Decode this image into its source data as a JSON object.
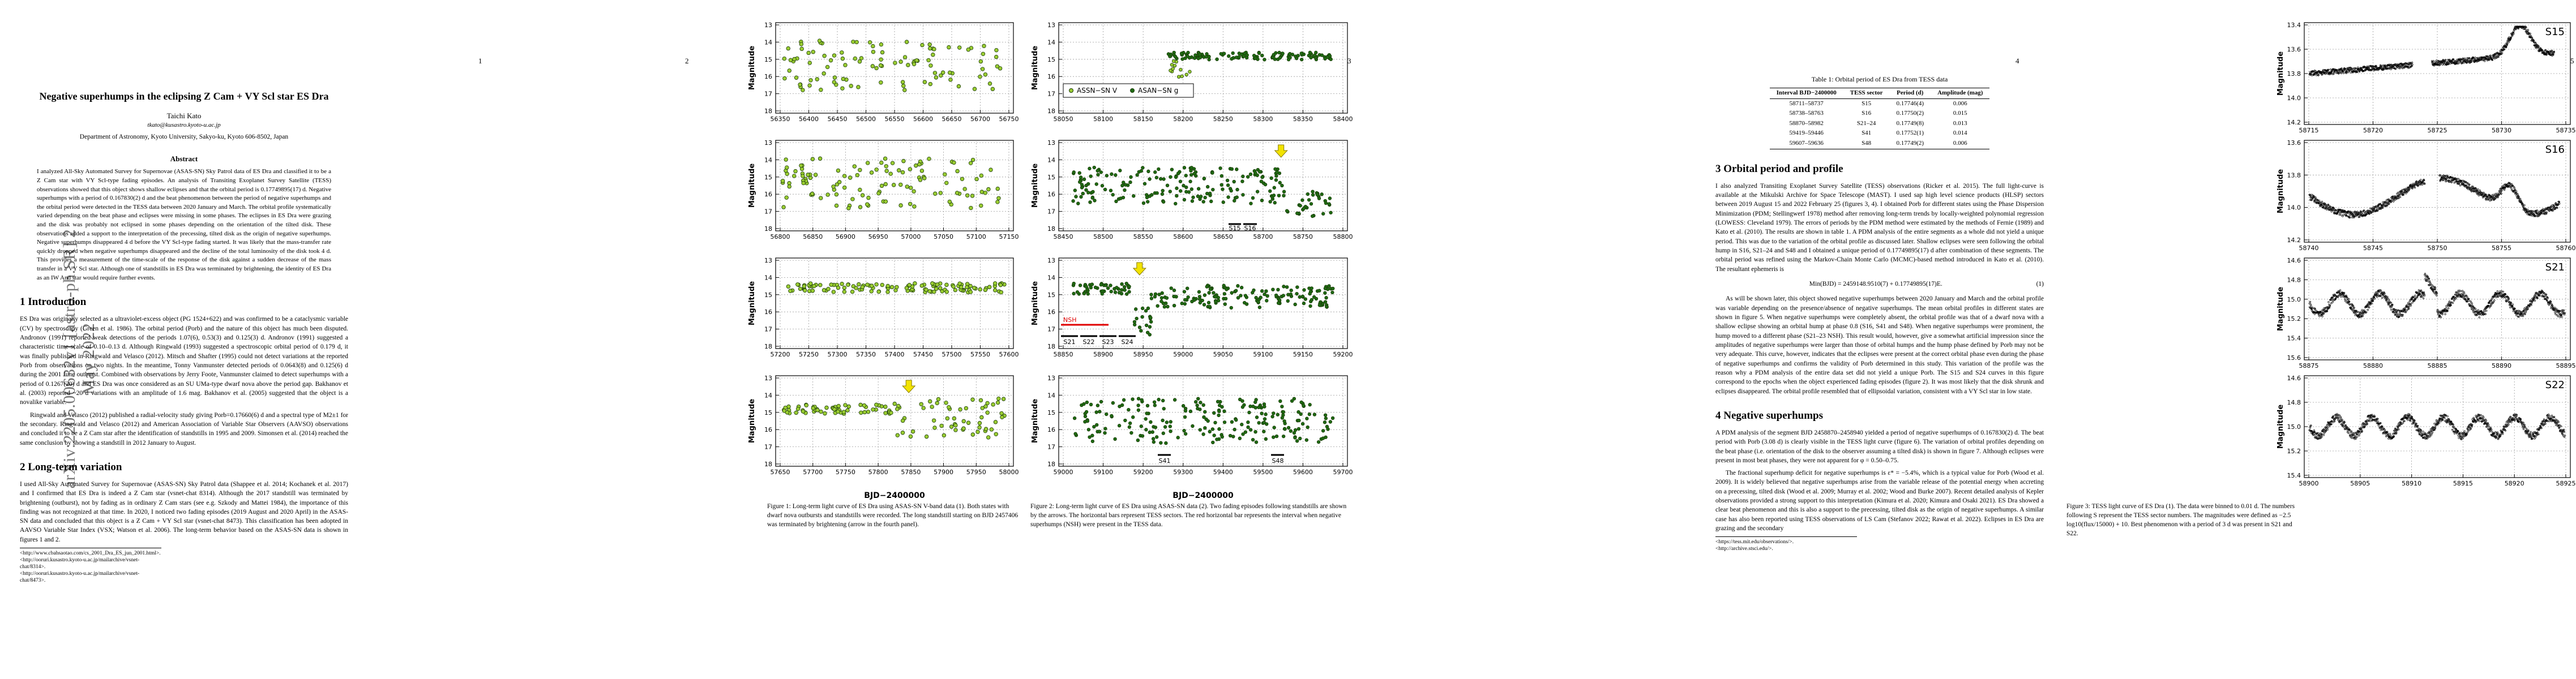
{
  "arxiv_stamp": "arXiv:2205.00632v1  [astro-ph.SR]  2 May 2022",
  "pages": [
    {
      "num": "1",
      "title": "Negative superhumps in the eclipsing Z Cam + VY Scl star ES Dra",
      "author": "Taichi Kato",
      "email": "tkato@kusastro.kyoto-u.ac.jp",
      "affil": "Department of Astronomy, Kyoto University, Sakyo-ku, Kyoto 606-8502, Japan",
      "abstract_head": "Abstract",
      "abstract": "I analyzed All-Sky Automated Survey for Supernovae (ASAS-SN) Sky Patrol data of ES Dra and classified it to be a Z Cam star with VY Scl-type fading episodes. An analysis of Transiting Exoplanet Survey Satellite (TESS) observations showed that this object shows shallow eclipses and that the orbital period is 0.17749895(17) d. Negative superhumps with a period of 0.167830(2) d and the beat phenomenon between the period of negative superhumps and the orbital period were detected in the TESS data between 2020 January and March. The orbital profile systematically varied depending on the beat phase and eclipses were missing in some phases. The eclipses in ES Dra were grazing and the disk was probably not eclipsed in some phases depending on the orientation of the tilted disk. These observations added a support to the interpretation of the precessing, tilted disk as the origin of negative superhumps. Negative superhumps disappeared 4 d before the VY Scl-type fading started. It was likely that the mass-transfer rate quickly dropped when negative superhumps disappeared and the decline of the total luminosity of the disk took 4 d. This provides a measurement of the time-scale of the response of the disk against a sudden decrease of the mass transfer in a VY Scl star. Although one of standstills in ES Dra was terminated by brightening, the identity of ES Dra as an IW And star would require further events.",
      "sec1": "1   Introduction",
      "intro_p1": "ES Dra was originally selected as a ultraviolet-excess object (PG 1524+622) and was confirmed to be a cataclysmic variable (CV) by spectroscopy (Green et al. 1986). The orbital period (Porb) and the nature of this object has much been disputed. Andronov (1991) reported weak detections of the periods 1.07(6), 0.53(3) and 0.125(3) d. Andronov (1991) suggested a characteristic time-scale of 0.10–0.13 d. Although Ringwald (1993) suggested a spectroscopic orbital period of 0.179 d, it was finally published in Ringwald and Velasco (2012). Mitsch and Shafter (1995) could not detect variations at the reported Porb from observations on two nights. In the meantime, Tonny Vanmunster detected periods of 0.0643(8) and 0.125(6) d during the 2001 June outburst. Combined with observations by Jerry Foote, Vanmunster claimed to detect superhumps with a period of 0.1267(20) d and ES Dra was once considered as an SU UMa-type dwarf nova above the period gap. Bakhanov et al. (2003) reported ~20 d variations with an amplitude of 1.6 mag. Bakhanov et al. (2005) suggested that the object is a novalike variable.",
      "intro_p2": "Ringwald and Velasco (2012) published a radial-velocity study giving Porb=0.17660(6) d and a spectral type of M2±1 for the secondary. Ringwald and Velasco (2012) and American Association of Variable Star Observers (AAVSO) observations and concluded it to be a Z Cam star after the identification of standstills in 1995 and 2009. Simonsen et al. (2014) reached the same conclusion by showing a standstill in 2012 January to August.",
      "sec2": "2   Long-term variation",
      "lt_p1": "I used All-Sky Automated Survey for Supernovae (ASAS-SN) Sky Patrol data (Shappee et al. 2014; Kochanek et al. 2017) and I confirmed that ES Dra is indeed a Z Cam star (vsnet-chat 8314). Although the 2017 standstill was terminated by brightening (outburst), not by fading as in ordinary Z Cam stars (see e.g. Szkody and Mattei 1984), the importance of this finding was not recognized at that time. In 2020, I noticed two fading episodes (2019 August and 2020 April) in the ASAS-SN data and concluded that this object is a Z Cam + VY Scl star (vsnet-chat 8473). This classification has been adopted in AAVSO Variable Star Index (VSX; Watson et al. 2006). The long-term behavior based on the ASAS-SN data is shown in figures 1 and 2.",
      "footnotes": [
        "<http://www.cbahsaotao.com/cs_2001_Dra_ES_jun_2001.html>.",
        "<http://ooruri.kusastro.kyoto-u.ac.jp/mailarchive/vsnet-chat/8314>.",
        "<http://ooruri.kusastro.kyoto-u.ac.jp/mailarchive/vsnet-chat/8473>."
      ]
    },
    {
      "num": "2",
      "ylabel": "Magnitude",
      "panels": [
        {
          "xticks": [
            "56350",
            "56400",
            "56450",
            "56500",
            "56550",
            "56600",
            "56650",
            "56700",
            "56750"
          ]
        },
        {
          "xticks": [
            "56800",
            "56850",
            "56900",
            "56950",
            "57000",
            "57050",
            "57100",
            "57150"
          ]
        },
        {
          "xticks": [
            "57200",
            "57250",
            "57300",
            "57350",
            "57400",
            "57450",
            "57500",
            "57550",
            "57600"
          ]
        },
        {
          "xticks": [
            "57650",
            "57700",
            "57750",
            "57800",
            "57850",
            "57900",
            "57950",
            "58000"
          ]
        }
      ],
      "yticks": [
        "13",
        "14",
        "15",
        "16",
        "17",
        "18"
      ],
      "xlabel": "BJD−2400000",
      "caption": "Figure 1:  Long-term light curve of ES Dra using ASAS-SN V-band data (1). Both states with dwarf nova outbursts and standstills were recorded. The long standstill starting on BJD 2457406 was terminated by brightening (arrow in the fourth panel)."
    },
    {
      "num": "3",
      "ylabel": "Magnitude",
      "legend_v": "ASSN−SN V",
      "legend_g": "ASAN−SN g",
      "panels": [
        {
          "xticks": [
            "58050",
            "58100",
            "58150",
            "58200",
            "58250",
            "58300",
            "58350",
            "58400"
          ]
        },
        {
          "xticks": [
            "58450",
            "58500",
            "58550",
            "58600",
            "58650",
            "58700",
            "58750",
            "58800"
          ]
        },
        {
          "xticks": [
            "58850",
            "58900",
            "58950",
            "59000",
            "59050",
            "59100",
            "59150",
            "59200"
          ]
        },
        {
          "xticks": [
            "59000",
            "59100",
            "59200",
            "59300",
            "59400",
            "59500",
            "59600",
            "59700"
          ]
        }
      ],
      "labels": {
        "s15": "S15",
        "s16": "S16",
        "nsh": "NSH",
        "s21": "S21",
        "s22": "S22",
        "s23": "S23",
        "s24": "S24",
        "s41": "S41",
        "s48": "S48"
      },
      "yticks": [
        "13",
        "14",
        "15",
        "16",
        "17",
        "18"
      ],
      "xlabel": "BJD−2400000",
      "caption": "Figure 2:  Long-term light curve of ES Dra using ASAS-SN data (2). Two fading episodes following standstills are shown by the arrows. The horizontal bars represent TESS sectors.  The red horizontal bar represents the interval when negative superhumps (NSH) were present in the TESS data."
    },
    {
      "num": "4",
      "table_caption": "Table 1: Orbital period of ES Dra from TESS data",
      "table_head": [
        "Interval BJD−2400000",
        "TESS sector",
        "Period (d)",
        "Amplitude (mag)"
      ],
      "table_rows": [
        [
          "58711–58737",
          "S15",
          "0.17746(4)",
          "0.006"
        ],
        [
          "58738–58763",
          "S16",
          "0.17750(2)",
          "0.015"
        ],
        [
          "58870–58982",
          "S21–24",
          "0.17749(8)",
          "0.013"
        ],
        [
          "59419–59446",
          "S41",
          "0.17752(1)",
          "0.014"
        ],
        [
          "59607–59636",
          "S48",
          "0.17749(2)",
          "0.006"
        ]
      ],
      "sec3": "3   Orbital period and profile",
      "orb_p1": "I also analyzed Transiting Exoplanet Survey Satellite (TESS) observations (Ricker et al. 2015). The full light-curve is available at the Mikulski Archive for Space Telescope (MAST). I used sap high level science products (HLSP) sectors between 2019 August 15 and 2022 February 25 (figures 3, 4). I obtained Porb for different states using the Phase Dispersion Minimization (PDM; Stellingwerf 1978) method after removing long-term trends by locally-weighted polynomial regression (LOWESS: Cleveland 1979). The errors of periods by the PDM method were estimated by the methods of Fernie (1989) and Kato et al. (2010). The results are shown in table 1. A PDM analysis of the entire segments as a whole did not yield a unique period. This was due to the variation of the orbital profile as discussed later. Shallow eclipses were seen following the orbital hump in S16, S21–24 and S48 and I obtained a unique period of 0.17749895(17) d after combination of these segments. The orbital period was refined using the Markov-Chain Monte Carlo (MCMC)-based method introduced in Kato et al. (2010). The resultant ephemeris is",
      "eq": "Min(BJD) = 2459148.9510(7) + 0.17749895(17)E.",
      "eq_num": "(1)",
      "orb_p2": "As will be shown later, this object showed negative superhumps between 2020 January and March and the orbital profile was variable depending on the presence/absence of negative superhumps. The mean orbital profiles in different states are shown in figure 5. When negative superhumps were completely absent, the orbital profile was that of a dwarf nova with a shallow eclipse showing an orbital hump at phase 0.8 (S16, S41 and S48). When negative superhumps were prominent, the hump moved to a different phase (S21–23 NSH). This result would, however, give a somewhat artificial impression since the amplitudes of negative superhumps were larger than those of orbital humps and the hump phase defined by Porb may not be very adequate. This curve, however, indicates that the eclipses were present at the correct orbital phase even during the phase of negative superhumps and confirms the validity of Porb determined in this study. This variation of the profile was the reason why a PDM analysis of the entire data set did not yield a unique Porb. The S15 and S24 curves in this figure correspond to the epochs when the object experienced fading episodes (figure 2). It was most likely that the disk shrunk and eclipses disappeared. The orbital profile resembled that of ellipsoidal variation, consistent with a VY Scl star in low state.",
      "sec4": "4   Negative superhumps",
      "nsh_p1": "A PDM analysis of the segment BJD 2458870–2458940 yielded a period of negative superhumps of 0.167830(2) d. The beat period with Porb (3.08 d) is clearly visible in the TESS light curve (figure 6). The variation of orbital profiles depending on the beat phase (i.e. orientation of the disk to the observer assuming a tilted disk) is shown in figure 7. Although eclipses were present in most beat phases, they were not apparent for φ = 0.50–0.75.",
      "nsh_p2": "The fractional superhump deficit for negative superhumps is ε* = −5.4%, which is a typical value for Porb (Wood et al. 2009). It is widely believed that negative superhumps arise from the variable release of the potential energy when accreting on a precessing, tilted disk (Wood et al. 2009; Murray et al. 2002; Wood and Burke 2007). Recent detailed analysis of Kepler observations provided a strong support to this interpretation (Kimura et al. 2020; Kimura and Osaki 2021). ES Dra showed a clear beat phenomenon and this is also a support to the precessing, tilted disk as the origin of negative superhumps. A similar case has also been reported using TESS observations of LS Cam (Stefanov 2022; Rawat et al. 2022). Eclipses in ES Dra are grazing and the secondary",
      "footnotes": [
        "<https://tess.mit.edu/observations/>.",
        "<http://archive.stsci.edu/>."
      ]
    },
    {
      "num": "5",
      "ylabel": "Magnitude",
      "panels": [
        {
          "label": "S15",
          "xticks": [
            "58715",
            "58720",
            "58725",
            "58730",
            "58735"
          ],
          "yticks": [
            "13.4",
            "13.6",
            "13.8",
            "14.0",
            "14.2"
          ]
        },
        {
          "label": "S16",
          "xticks": [
            "58740",
            "58745",
            "58750",
            "58755",
            "58760"
          ],
          "yticks": [
            "13.6",
            "13.8",
            "14.0",
            "14.2"
          ]
        },
        {
          "label": "S21",
          "xticks": [
            "58875",
            "58880",
            "58885",
            "58890",
            "58895"
          ],
          "yticks": [
            "14.6",
            "14.8",
            "15.0",
            "15.2",
            "15.4",
            "15.6"
          ]
        },
        {
          "label": "S22",
          "xticks": [
            "58900",
            "58905",
            "58910",
            "58915",
            "58920",
            "58925"
          ],
          "yticks": [
            "14.6",
            "14.8",
            "15.0",
            "15.2",
            "15.4"
          ]
        }
      ],
      "caption": "Figure 3:  TESS light curve of ES Dra (1). The data were binned to 0.01 d. The numbers following S represent the TESS sector numbers. The magnitudes were defined as −2.5 log10(flux/15000) + 10. Best phenomenon with a period of 3 d was present in S21 and S22."
    }
  ]
}
